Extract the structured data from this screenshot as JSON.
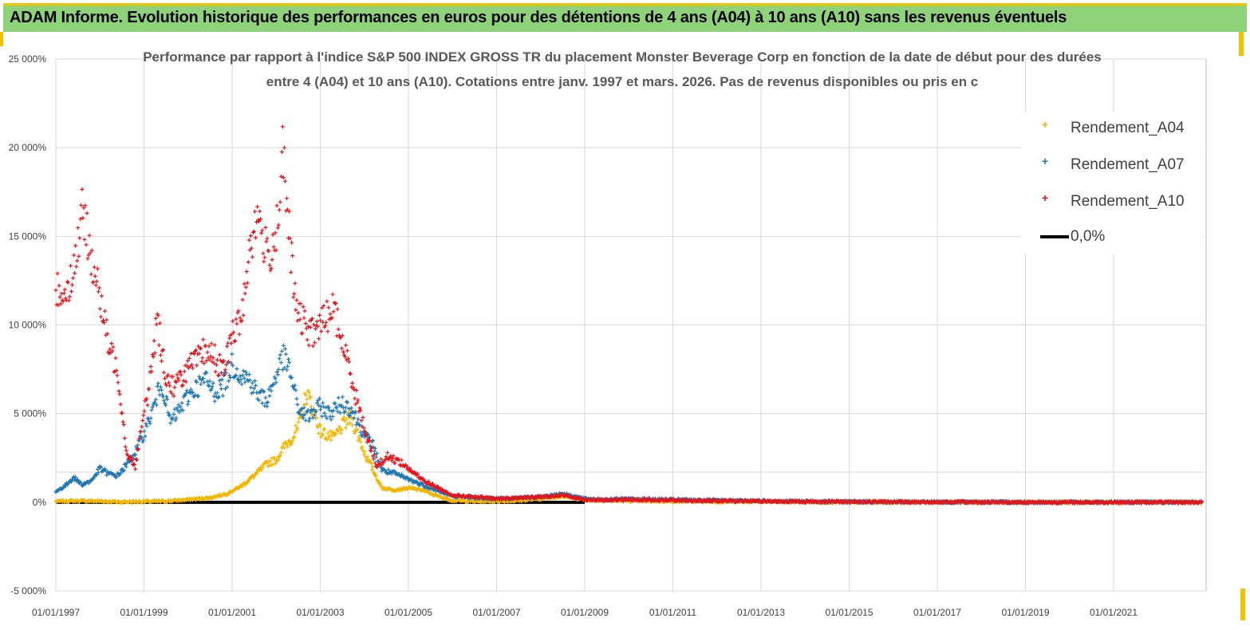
{
  "banner": {
    "title": "ADAM Informe. Evolution historique des performances en euros pour des détentions de 4 ans (A04) à 10 ans (A10) sans les revenus éventuels"
  },
  "chart_data": {
    "type": "scatter",
    "title_lines": [
      "Performance par rapport à l'indice S&P 500 INDEX GROSS TR  du placement Monster Beverage Corp en fonction de la date de début pour des durées",
      "entre 4 (A04) et 10 ans (A10).  Cotations entre janv. 1997 et mars. 2026. Pas de revenus disponibles ou pris en c"
    ],
    "xlim": [
      1997.0,
      2023.1
    ],
    "ylim": [
      -5000,
      25000
    ],
    "y_ticks": [
      -5000,
      0,
      5000,
      10000,
      15000,
      20000,
      25000
    ],
    "y_tick_labels": [
      "-5 000%",
      "0%",
      "5 000%",
      "10 000%",
      "15 000%",
      "20 000%",
      "25 000%"
    ],
    "x_ticks": [
      1997,
      1999,
      2001,
      2003,
      2005,
      2007,
      2009,
      2011,
      2013,
      2015,
      2017,
      2019,
      2021
    ],
    "x_tick_labels": [
      "01/01/1997",
      "01/01/1999",
      "01/01/2001",
      "01/01/2003",
      "01/01/2005",
      "01/01/2007",
      "01/01/2009",
      "01/01/2011",
      "01/01/2013",
      "01/01/2015",
      "01/01/2017",
      "01/01/2019",
      "01/01/2021"
    ],
    "grid": true,
    "legend_position": "top-right",
    "series": [
      {
        "name": "Rendement_A04",
        "color": "#f2b600",
        "marker": "plus",
        "x": [
          1997.0,
          1997.5,
          1998.0,
          1998.5,
          1999.0,
          1999.5,
          2000.0,
          2000.5,
          2000.9,
          2001.2,
          2001.5,
          2001.8,
          2002.0,
          2002.2,
          2002.35,
          2002.5,
          2002.7,
          2003.0,
          2003.3,
          2003.5,
          2003.7,
          2004.0,
          2004.2,
          2004.4,
          2004.7,
          2005.0,
          2005.3,
          2005.6,
          2006.0,
          2006.5,
          2007.0,
          2007.5,
          2008.0,
          2008.5,
          2009.0,
          2009.5,
          2010.0,
          2011.0,
          2012.0,
          2013.0,
          2014.0,
          2015.0,
          2016.0,
          2017.0,
          2018.0,
          2019.0,
          2020.0,
          2021.0,
          2022.0,
          2023.0
        ],
        "y": [
          50,
          80,
          60,
          20,
          40,
          60,
          150,
          250,
          500,
          900,
          1500,
          2200,
          2400,
          3200,
          3600,
          4200,
          6200,
          4000,
          3600,
          4300,
          4800,
          2800,
          1800,
          800,
          700,
          800,
          700,
          400,
          100,
          50,
          60,
          100,
          200,
          350,
          150,
          100,
          80,
          60,
          40,
          30,
          20,
          10,
          10,
          10,
          0,
          0,
          0,
          0,
          0,
          0
        ]
      },
      {
        "name": "Rendement_A07",
        "color": "#1f77b4",
        "marker": "plus",
        "x": [
          1997.0,
          1997.2,
          1997.4,
          1997.6,
          1997.8,
          1998.0,
          1998.2,
          1998.4,
          1998.6,
          1998.8,
          1999.0,
          1999.2,
          1999.4,
          1999.6,
          1999.8,
          2000.0,
          2000.2,
          2000.4,
          2000.6,
          2000.8,
          2001.0,
          2001.2,
          2001.4,
          2001.6,
          2001.8,
          2002.0,
          2002.15,
          2002.3,
          2002.5,
          2002.7,
          2003.0,
          2003.2,
          2003.5,
          2003.7,
          2004.0,
          2004.2,
          2004.4,
          2004.7,
          2005.0,
          2005.3,
          2005.6,
          2006.0,
          2006.5,
          2007.0,
          2007.5,
          2008.0,
          2008.5,
          2009.0,
          2009.5,
          2010.0,
          2011.0,
          2012.0,
          2013.0,
          2014.0,
          2015.0,
          2016.0,
          2017.0,
          2018.0,
          2019.0,
          2020.0,
          2021.0,
          2022.0,
          2023.0
        ],
        "y": [
          600,
          900,
          1400,
          1000,
          1200,
          1900,
          1600,
          1500,
          2100,
          2800,
          3900,
          5200,
          6800,
          4500,
          5200,
          6000,
          6500,
          6900,
          6200,
          6600,
          7800,
          7200,
          6900,
          6000,
          5800,
          7200,
          8200,
          7500,
          5300,
          4800,
          5400,
          5000,
          5600,
          5300,
          3800,
          3200,
          1800,
          1600,
          1300,
          1000,
          700,
          350,
          250,
          200,
          250,
          300,
          500,
          200,
          150,
          200,
          150,
          100,
          80,
          50,
          30,
          20,
          10,
          10,
          0,
          0,
          0,
          0,
          0
        ]
      },
      {
        "name": "Rendement_A10",
        "color": "#e8141c",
        "marker": "plus",
        "x": [
          1997.0,
          1997.2,
          1997.4,
          1997.6,
          1997.8,
          1998.0,
          1998.2,
          1998.4,
          1998.6,
          1998.8,
          1999.0,
          1999.1,
          1999.3,
          1999.5,
          1999.7,
          2000.0,
          2000.2,
          2000.4,
          2000.6,
          2000.8,
          2001.0,
          2001.2,
          2001.4,
          2001.6,
          2001.8,
          2002.0,
          2002.15,
          2002.3,
          2002.45,
          2002.6,
          2002.8,
          2003.0,
          2003.3,
          2003.5,
          2003.7,
          2003.9,
          2004.1,
          2004.3,
          2004.5,
          2004.8,
          2005.0,
          2005.3,
          2005.6,
          2006.0,
          2006.5,
          2007.0,
          2007.5,
          2008.0,
          2008.5,
          2009.0,
          2009.5,
          2010.0,
          2011.0,
          2012.0,
          2013.0,
          2014.0,
          2015.0,
          2016.0,
          2017.0,
          2018.0,
          2019.0,
          2020.0,
          2021.0,
          2022.0,
          2023.0
        ],
        "y": [
          12000,
          11800,
          13000,
          16300,
          14000,
          11500,
          8800,
          7500,
          2900,
          2000,
          5000,
          6200,
          10300,
          7000,
          6500,
          7600,
          8000,
          8600,
          8200,
          7300,
          9500,
          10200,
          14500,
          16200,
          13700,
          15200,
          19500,
          15000,
          10800,
          10200,
          9500,
          10000,
          11000,
          9000,
          7200,
          5000,
          3400,
          2000,
          2600,
          2300,
          1900,
          1300,
          900,
          400,
          300,
          200,
          250,
          300,
          400,
          150,
          120,
          150,
          120,
          80,
          60,
          40,
          30,
          20,
          10,
          10,
          0,
          0,
          0,
          0,
          0
        ]
      },
      {
        "name": "0,0%",
        "color": "#000000",
        "marker": "line",
        "x": [
          1997.0,
          2009.0
        ],
        "y": [
          0,
          0
        ]
      }
    ]
  }
}
